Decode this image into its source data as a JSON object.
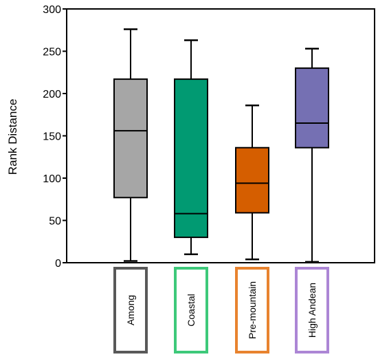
{
  "chart_data": {
    "type": "box",
    "title": "",
    "xlabel": "",
    "ylabel": "Rank Distance",
    "ylim": [
      0,
      300
    ],
    "yticks": [
      0,
      50,
      100,
      150,
      200,
      250,
      300
    ],
    "grid": false,
    "series": [
      {
        "category": "Among",
        "min": 2,
        "q1": 77,
        "median": 156,
        "q3": 217,
        "max": 276,
        "fill": "#a6a6a6",
        "label_border": "#595959"
      },
      {
        "category": "Coastal",
        "min": 10,
        "q1": 30,
        "median": 58,
        "q3": 217,
        "max": 263,
        "fill": "#019a72",
        "label_border": "#3ec97a"
      },
      {
        "category": "Pre-mountain",
        "min": 4,
        "q1": 59,
        "median": 94,
        "q3": 136,
        "max": 186,
        "fill": "#d55e00",
        "label_border": "#e8832f"
      },
      {
        "category": "High Andean",
        "min": 1,
        "q1": 136,
        "median": 165,
        "q3": 230,
        "max": 253,
        "fill": "#7570b3",
        "label_border": "#ac86d5"
      }
    ]
  }
}
